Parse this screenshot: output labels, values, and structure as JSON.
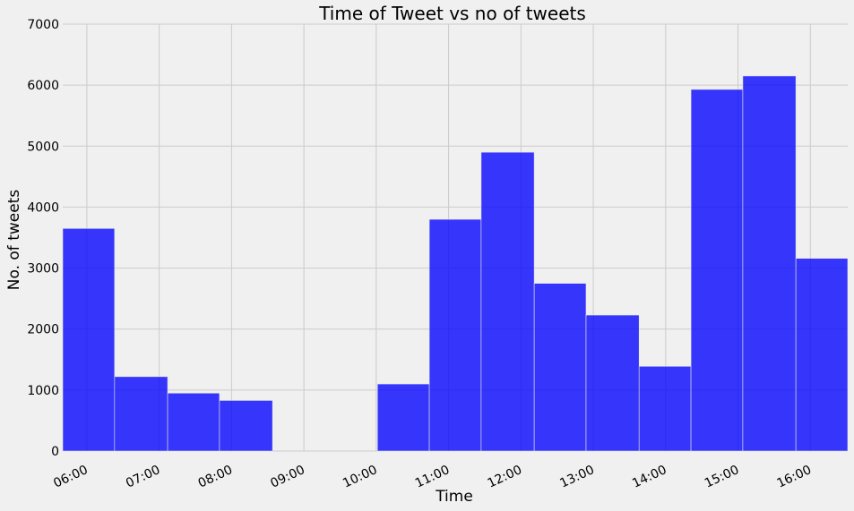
{
  "chart_data": {
    "type": "bar",
    "title": "Time of Tweet vs no of tweets",
    "xlabel": "Time",
    "ylabel": "No. of tweets",
    "ylim": [
      0,
      7000
    ],
    "yticks": [
      0,
      1000,
      2000,
      3000,
      4000,
      5000,
      6000,
      7000
    ],
    "xtick_labels": [
      "06:00",
      "07:00",
      "08:00",
      "09:00",
      "10:00",
      "11:00",
      "12:00",
      "13:00",
      "14:00",
      "15:00",
      "16:00"
    ],
    "grid": true,
    "bar_color": "#0000ff",
    "bins": [
      {
        "start": "05:40",
        "end": "06:23",
        "value": 3650
      },
      {
        "start": "06:23",
        "end": "07:07",
        "value": 1220
      },
      {
        "start": "07:07",
        "end": "07:50",
        "value": 950
      },
      {
        "start": "07:50",
        "end": "08:34",
        "value": 830
      },
      {
        "start": "08:34",
        "end": "09:17",
        "value": 0
      },
      {
        "start": "09:17",
        "end": "10:01",
        "value": 0
      },
      {
        "start": "10:01",
        "end": "10:44",
        "value": 1100
      },
      {
        "start": "10:44",
        "end": "11:27",
        "value": 3800
      },
      {
        "start": "11:27",
        "end": "12:11",
        "value": 4900
      },
      {
        "start": "12:11",
        "end": "12:54",
        "value": 2750
      },
      {
        "start": "12:54",
        "end": "13:38",
        "value": 2230
      },
      {
        "start": "13:38",
        "end": "14:21",
        "value": 1390
      },
      {
        "start": "14:21",
        "end": "15:04",
        "value": 5930
      },
      {
        "start": "15:04",
        "end": "15:48",
        "value": 6150
      },
      {
        "start": "15:48",
        "end": "16:31",
        "value": 3160
      }
    ]
  }
}
